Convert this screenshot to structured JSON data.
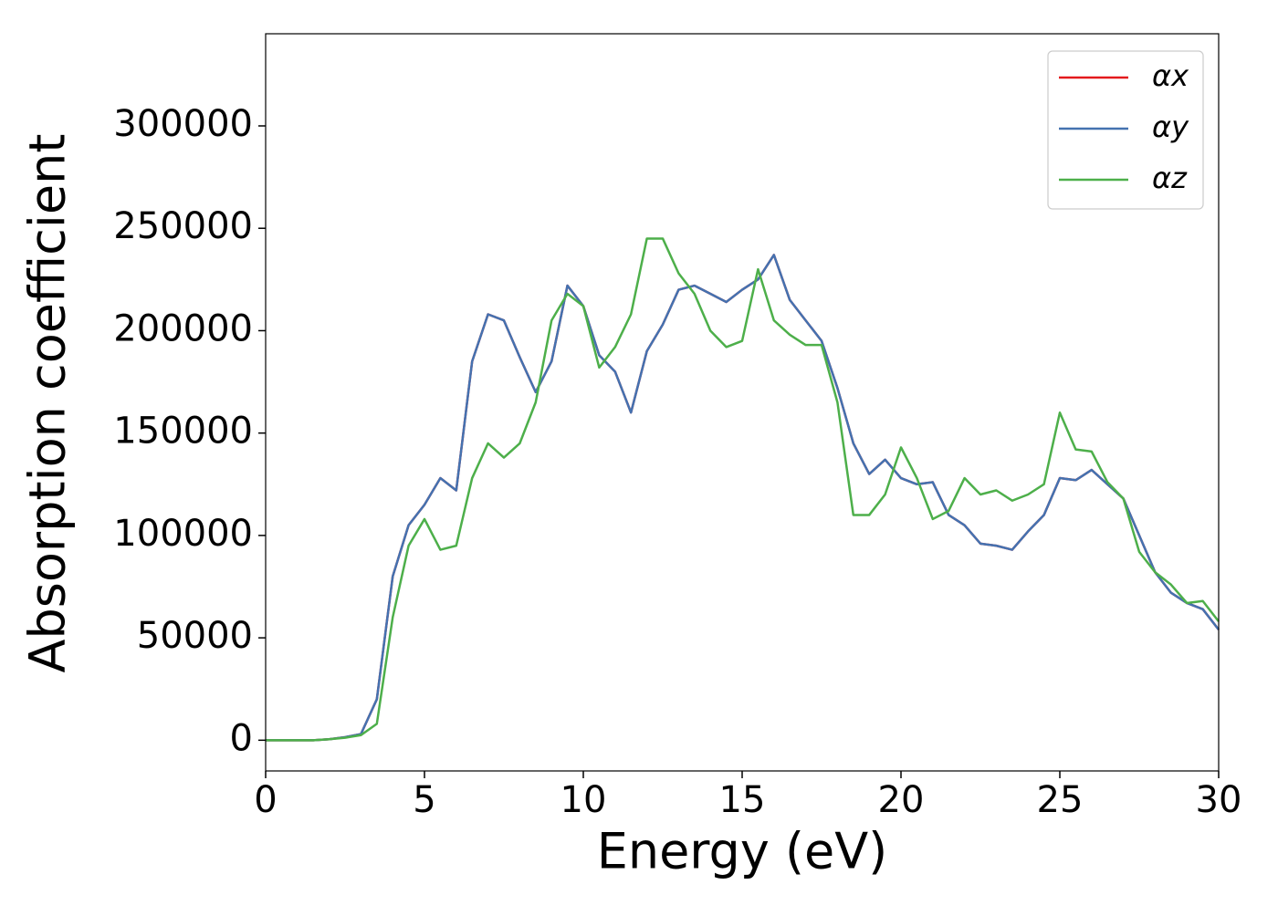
{
  "chart_data": {
    "type": "line",
    "xlabel": "Energy (eV)",
    "ylabel": "Absorption coefficient",
    "x": [
      0,
      0.5,
      1,
      1.5,
      2,
      2.5,
      3,
      3.5,
      4,
      4.5,
      5,
      5.5,
      6,
      6.5,
      7,
      7.5,
      8,
      8.5,
      9,
      9.5,
      10,
      10.5,
      11,
      11.5,
      12,
      12.5,
      13,
      13.5,
      14,
      14.5,
      15,
      15.5,
      16,
      16.5,
      17,
      17.5,
      18,
      18.5,
      19,
      19.5,
      20,
      20.5,
      21,
      21.5,
      22,
      22.5,
      23,
      23.5,
      24,
      24.5,
      25,
      25.5,
      26,
      26.5,
      27,
      27.5,
      28,
      28.5,
      29,
      29.5,
      30
    ],
    "series": [
      {
        "name": "αx",
        "color": "#e41a1c",
        "values": [
          0,
          0,
          0,
          0,
          500,
          1500,
          3000,
          20000,
          80000,
          105000,
          115000,
          128000,
          122000,
          185000,
          208000,
          205000,
          187000,
          170000,
          185000,
          222000,
          212000,
          188000,
          180000,
          160000,
          190000,
          203000,
          220000,
          222000,
          218000,
          214000,
          220000,
          225000,
          237000,
          215000,
          205000,
          195000,
          172000,
          145000,
          130000,
          137000,
          128000,
          125000,
          126000,
          110000,
          105000,
          96000,
          95000,
          93000,
          102000,
          110000,
          128000,
          127000,
          132000,
          125000,
          118000,
          100000,
          82000,
          72000,
          67000,
          64000,
          54000
        ]
      },
      {
        "name": "αy",
        "color": "#4472b0",
        "values": [
          0,
          0,
          0,
          0,
          500,
          1500,
          3000,
          20000,
          80000,
          105000,
          115000,
          128000,
          122000,
          185000,
          208000,
          205000,
          187000,
          170000,
          185000,
          222000,
          212000,
          188000,
          180000,
          160000,
          190000,
          203000,
          220000,
          222000,
          218000,
          214000,
          220000,
          225000,
          237000,
          215000,
          205000,
          195000,
          172000,
          145000,
          130000,
          137000,
          128000,
          125000,
          126000,
          110000,
          105000,
          96000,
          95000,
          93000,
          102000,
          110000,
          128000,
          127000,
          132000,
          125000,
          118000,
          100000,
          82000,
          72000,
          67000,
          64000,
          54000
        ]
      },
      {
        "name": "αz",
        "color": "#4daf4a",
        "values": [
          0,
          0,
          0,
          0,
          500,
          1200,
          2500,
          8000,
          60000,
          95000,
          108000,
          93000,
          95000,
          128000,
          145000,
          138000,
          145000,
          165000,
          205000,
          218000,
          212000,
          182000,
          192000,
          208000,
          245000,
          245000,
          228000,
          218000,
          200000,
          192000,
          195000,
          230000,
          205000,
          198000,
          193000,
          193000,
          165000,
          110000,
          110000,
          120000,
          143000,
          128000,
          108000,
          112000,
          128000,
          120000,
          122000,
          117000,
          120000,
          125000,
          160000,
          142000,
          141000,
          126000,
          118000,
          92000,
          82000,
          76000,
          67000,
          68000,
          58000
        ]
      }
    ],
    "xlim": [
      0,
      30
    ],
    "xticks": [
      0,
      5,
      10,
      15,
      20,
      25,
      30
    ],
    "ylim": [
      -15000,
      345000
    ],
    "yticks": [
      0,
      50000,
      100000,
      150000,
      200000,
      250000,
      300000
    ],
    "legend": "upper right",
    "grid": false
  }
}
